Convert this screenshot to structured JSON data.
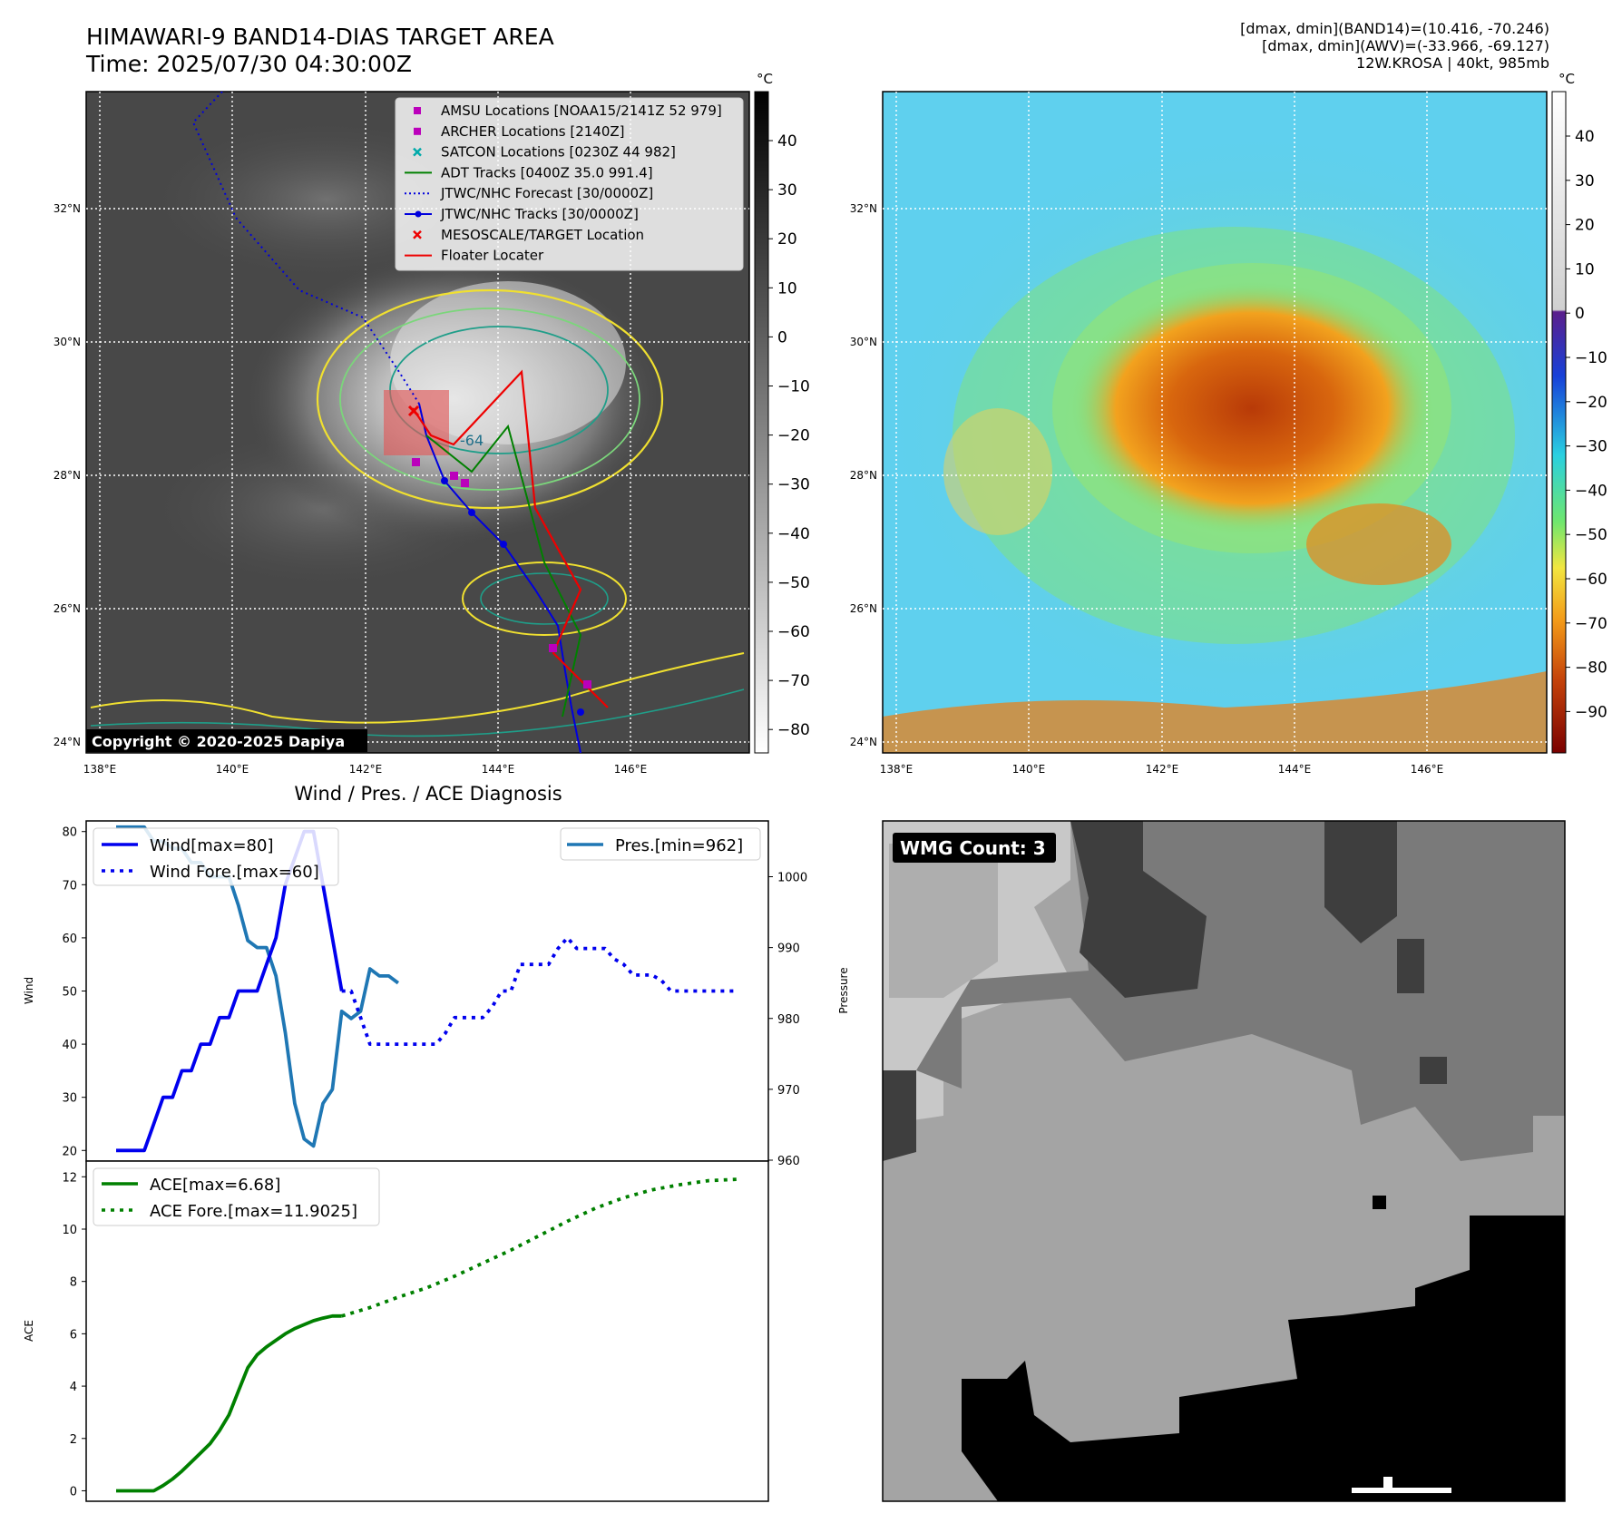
{
  "header": {
    "title_line1": "HIMAWARI-9 BAND14-DIAS TARGET AREA",
    "title_line2": "Time: 2025/07/30 04:30:00Z",
    "meta_line1": "[dmax, dmin](BAND14)=(10.416, -70.246)",
    "meta_line2": "[dmax, dmin](AWV)=(-33.966, -69.127)",
    "meta_line3": "12W.KROSA | 40kt, 985mb"
  },
  "map": {
    "lat_labels": [
      "32°N",
      "30°N",
      "28°N",
      "26°N",
      "24°N"
    ],
    "lon_labels": [
      "138°E",
      "140°E",
      "142°E",
      "144°E",
      "146°E"
    ],
    "colorbar_unit": "°C",
    "ir_colorbar_ticks": [
      "40",
      "30",
      "20",
      "10",
      "0",
      "−10",
      "−20",
      "−30",
      "−40",
      "−50",
      "−60",
      "−70",
      "−80"
    ],
    "wv_colorbar_ticks": [
      "40",
      "30",
      "20",
      "10",
      "0",
      "−10",
      "−20",
      "−30",
      "−40",
      "−50",
      "−60",
      "−70",
      "−80",
      "−90"
    ],
    "copyright": "Copyright © 2020-2025 Dapiya",
    "contour_label": "-64",
    "legend": [
      {
        "label": "AMSU Locations [NOAA15/2141Z 52 979]",
        "color": "#bb00bb",
        "kind": "square"
      },
      {
        "label": "ARCHER Locations [2140Z]",
        "color": "#bb00bb",
        "kind": "square"
      },
      {
        "label": "SATCON Locations [0230Z 44 982]",
        "color": "#00aaaa",
        "kind": "x"
      },
      {
        "label": "ADT Tracks [0400Z 35.0 991.4]",
        "color": "#008000",
        "kind": "line"
      },
      {
        "label": "JTWC/NHC Forecast [30/0000Z]",
        "color": "#0000dd",
        "kind": "dotted"
      },
      {
        "label": "JTWC/NHC Tracks [30/0000Z]",
        "color": "#0000dd",
        "kind": "line-dot"
      },
      {
        "label": "MESOSCALE/TARGET Location",
        "color": "#ee0000",
        "kind": "x"
      },
      {
        "label": "Floater Locater",
        "color": "#ee0000",
        "kind": "line"
      }
    ]
  },
  "wmg": {
    "label": "WMG Count: 3"
  },
  "chart_data": [
    {
      "type": "line",
      "title": "Wind / Pres. / ACE Diagnosis",
      "ylabel": "Wind",
      "y2label": "Pressure",
      "ylim": [
        18,
        82
      ],
      "y2lim": [
        960,
        1008
      ],
      "yticks": [
        20,
        30,
        40,
        50,
        60,
        70,
        80
      ],
      "y2ticks": [
        960,
        970,
        980,
        990,
        1000
      ],
      "legend_placement": [
        "upper-left",
        "upper-right"
      ],
      "series": [
        {
          "name": "Wind[max=80]",
          "style": "solid",
          "color": "#0000ee",
          "x": [
            0,
            1,
            2,
            3,
            4,
            5,
            6,
            7,
            8,
            9,
            10,
            11,
            12,
            13,
            14,
            15,
            16,
            17,
            18,
            19,
            20,
            21,
            22,
            23,
            24
          ],
          "values": [
            20,
            20,
            20,
            20,
            25,
            30,
            30,
            35,
            35,
            40,
            40,
            45,
            45,
            50,
            50,
            50,
            55,
            60,
            70,
            75,
            80,
            80,
            70,
            60,
            50
          ]
        },
        {
          "name": "Wind Fore.[max=60]",
          "style": "dotted",
          "color": "#0000ee",
          "x": [
            24,
            25,
            26,
            27,
            28,
            29,
            30,
            31,
            32,
            33,
            34,
            35,
            36,
            37,
            38,
            39,
            40,
            41,
            42,
            43,
            44,
            45,
            46,
            47,
            48,
            49,
            50,
            51,
            52,
            53,
            54,
            55,
            56,
            57,
            58,
            59,
            60,
            61,
            62,
            63,
            64,
            65,
            66
          ],
          "values": [
            50,
            50,
            45,
            40,
            40,
            40,
            40,
            40,
            40,
            40,
            40,
            42,
            45,
            45,
            45,
            45,
            47,
            50,
            50,
            55,
            55,
            55,
            55,
            58,
            60,
            58,
            58,
            58,
            58,
            56,
            55,
            53,
            53,
            53,
            52,
            50,
            50,
            50,
            50,
            50,
            50,
            50,
            50
          ]
        },
        {
          "name": "Pres.[min=962]",
          "style": "solid",
          "color": "#1f77b4",
          "axis": "right",
          "x": [
            0,
            1,
            2,
            3,
            4,
            5,
            6,
            7,
            8,
            9,
            10,
            11,
            12,
            13,
            14,
            15,
            16,
            17,
            18,
            19,
            20,
            21,
            22,
            23,
            24,
            25,
            26,
            27,
            28,
            29,
            30
          ],
          "values": [
            1007,
            1007,
            1007,
            1007,
            1005,
            1005,
            1004,
            1004,
            1002,
            1002,
            1000,
            1000,
            1000,
            996,
            991,
            990,
            990,
            986,
            978,
            968,
            963,
            962,
            968,
            970,
            981,
            980,
            981,
            987,
            986,
            986,
            985
          ]
        }
      ]
    },
    {
      "type": "line",
      "ylabel": "ACE",
      "ylim": [
        -0.4,
        12.6
      ],
      "yticks": [
        0,
        2,
        4,
        6,
        8,
        10,
        12
      ],
      "legend_placement": "upper-left",
      "series": [
        {
          "name": "ACE[max=6.68]",
          "style": "solid",
          "color": "#008000",
          "x": [
            0,
            1,
            2,
            3,
            4,
            5,
            6,
            7,
            8,
            9,
            10,
            11,
            12,
            13,
            14,
            15,
            16,
            17,
            18,
            19,
            20,
            21,
            22,
            23,
            24
          ],
          "values": [
            0,
            0,
            0,
            0,
            0,
            0.2,
            0.45,
            0.75,
            1.1,
            1.45,
            1.8,
            2.3,
            2.9,
            3.8,
            4.7,
            5.2,
            5.5,
            5.75,
            6.0,
            6.2,
            6.35,
            6.5,
            6.6,
            6.68,
            6.68
          ]
        },
        {
          "name": "ACE Fore.[max=11.9025]",
          "style": "dotted",
          "color": "#008000",
          "x": [
            24,
            27,
            30,
            33,
            36,
            39,
            42,
            45,
            48,
            51,
            54,
            57,
            60,
            63,
            66
          ],
          "values": [
            6.68,
            7.0,
            7.4,
            7.75,
            8.2,
            8.7,
            9.2,
            9.75,
            10.3,
            10.8,
            11.2,
            11.5,
            11.7,
            11.85,
            11.9025
          ]
        }
      ]
    }
  ]
}
